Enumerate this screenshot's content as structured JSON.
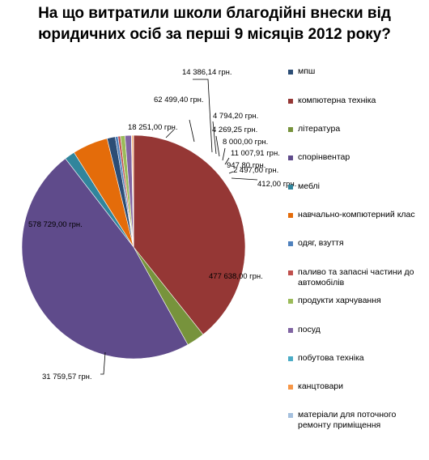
{
  "chart_data": {
    "type": "pie",
    "title": "На що витратили школи благодійні  внески від\nюридичних осіб за перші 9 місяців 2012 року?",
    "slices": [
      {
        "name": "мпш",
        "value": 14386.14,
        "label": "14 386,14 грн.",
        "color": "#2C4D75"
      },
      {
        "name": "компютерна техніка",
        "value": 477638.0,
        "label": "477 638,00 грн.",
        "color": "#953735"
      },
      {
        "name": "література",
        "value": 31759.57,
        "label": "31 759,57 грн.",
        "color": "#77933C"
      },
      {
        "name": "спорінвентар",
        "value": 578729.0,
        "label": "578 729,00 грн.",
        "color": "#5F4B8B"
      },
      {
        "name": "меблі",
        "value": 18251.0,
        "label": "18 251,00 грн.",
        "color": "#31859C"
      },
      {
        "name": "навчально-компютерний клас",
        "value": 62499.4,
        "label": "62 499,40 грн.",
        "color": "#E46C0A"
      },
      {
        "name": "одяг, взуття",
        "value": 4794.2,
        "label": "4 794,20 грн.",
        "color": "#4F81BD"
      },
      {
        "name": "паливо та запасні частини до автомобілів",
        "value": 4269.25,
        "label": "4 269,25 грн.",
        "color": "#C0504D"
      },
      {
        "name": "продукти харчування",
        "value": 8000.0,
        "label": "8 000,00 грн.",
        "color": "#9BBB59"
      },
      {
        "name": "посуд",
        "value": 11007.91,
        "label": "11 007,91 грн.",
        "color": "#8064A2"
      },
      {
        "name": "побутова техніка",
        "value": 947.8,
        "label": "947,80 грн.",
        "color": "#4BACC6"
      },
      {
        "name": "канцтовари",
        "value": 2497.0,
        "label": "2 497,00 грн.",
        "color": "#F79646"
      },
      {
        "name": "матеріали для поточного ремонту приміщення",
        "value": 412.0,
        "label": "412,00 грн.",
        "color": "#A5C0DE"
      }
    ],
    "legend_position": "right"
  }
}
